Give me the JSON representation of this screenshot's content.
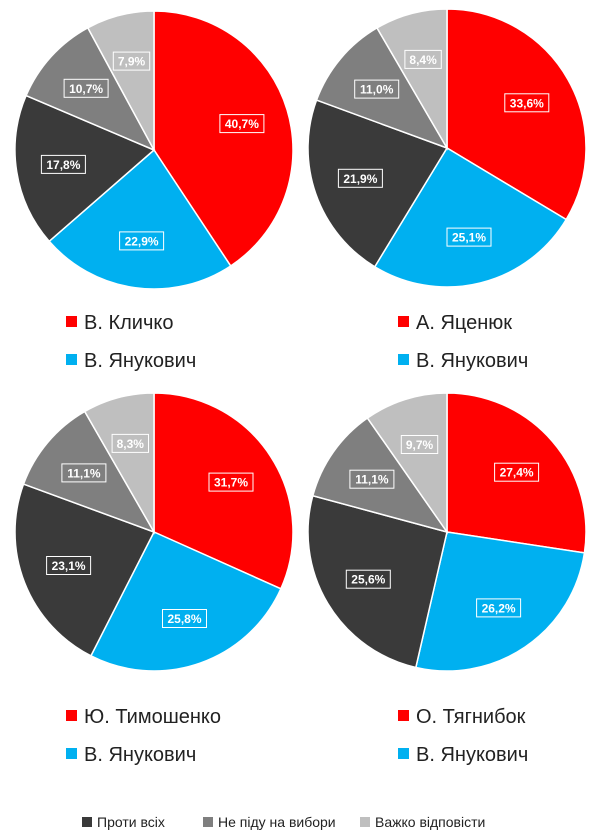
{
  "colors": {
    "candidate": "#ff0000",
    "yanukovych": "#00b0f0",
    "against_all": "#3a3a3a",
    "not_voting": "#7f7f7f",
    "hard_to_say": "#bfbfbf"
  },
  "chart_data": [
    {
      "type": "pie",
      "slices": [
        {
          "name": "В. Кличко",
          "value": 40.7,
          "label": "40,7%",
          "color_key": "candidate"
        },
        {
          "name": "В. Янукович",
          "value": 22.9,
          "label": "22,9%",
          "color_key": "yanukovych"
        },
        {
          "name": "Проти всіх",
          "value": 17.8,
          "label": "17,8%",
          "color_key": "against_all"
        },
        {
          "name": "Не піду на вибори",
          "value": 10.7,
          "label": "10,7%",
          "color_key": "not_voting"
        },
        {
          "name": "Важко відповісти",
          "value": 7.9,
          "label": "7,9%",
          "color_key": "hard_to_say"
        }
      ],
      "legend": [
        "В. Кличко",
        "В. Янукович"
      ]
    },
    {
      "type": "pie",
      "slices": [
        {
          "name": "А. Яценюк",
          "value": 33.6,
          "label": "33,6%",
          "color_key": "candidate"
        },
        {
          "name": "В. Янукович",
          "value": 25.1,
          "label": "25,1%",
          "color_key": "yanukovych"
        },
        {
          "name": "Проти всіх",
          "value": 21.9,
          "label": "21,9%",
          "color_key": "against_all"
        },
        {
          "name": "Не піду на вибори",
          "value": 11.0,
          "label": "11,0%",
          "color_key": "not_voting"
        },
        {
          "name": "Важко відповісти",
          "value": 8.4,
          "label": "8,4%",
          "color_key": "hard_to_say"
        }
      ],
      "legend": [
        "А. Яценюк",
        "В. Янукович"
      ]
    },
    {
      "type": "pie",
      "slices": [
        {
          "name": "Ю. Тимошенко",
          "value": 31.7,
          "label": "31,7%",
          "color_key": "candidate"
        },
        {
          "name": "В. Янукович",
          "value": 25.8,
          "label": "25,8%",
          "color_key": "yanukovych"
        },
        {
          "name": "Проти всіх",
          "value": 23.1,
          "label": "23,1%",
          "color_key": "against_all"
        },
        {
          "name": "Не піду на вибори",
          "value": 11.1,
          "label": "11,1%",
          "color_key": "not_voting"
        },
        {
          "name": "Важко відповісти",
          "value": 8.3,
          "label": "8,3%",
          "color_key": "hard_to_say"
        }
      ],
      "legend": [
        "Ю. Тимошенко",
        "В. Янукович"
      ]
    },
    {
      "type": "pie",
      "slices": [
        {
          "name": "О. Тягнибок",
          "value": 27.4,
          "label": "27,4%",
          "color_key": "candidate"
        },
        {
          "name": "В. Янукович",
          "value": 26.2,
          "label": "26,2%",
          "color_key": "yanukovych"
        },
        {
          "name": "Проти всіх",
          "value": 25.6,
          "label": "25,6%",
          "color_key": "against_all"
        },
        {
          "name": "Не піду на вибори",
          "value": 11.1,
          "label": "11,1%",
          "color_key": "not_voting"
        },
        {
          "name": "Важко відповісти",
          "value": 9.7,
          "label": "9,7%",
          "color_key": "hard_to_say"
        }
      ],
      "legend": [
        "О. Тягнибок",
        "В. Янукович"
      ]
    }
  ],
  "bottom_legend": [
    {
      "label": "Проти всіх",
      "color_key": "against_all"
    },
    {
      "label": "Не піду на вибори",
      "color_key": "not_voting"
    },
    {
      "label": "Важко відповісти",
      "color_key": "hard_to_say"
    }
  ]
}
